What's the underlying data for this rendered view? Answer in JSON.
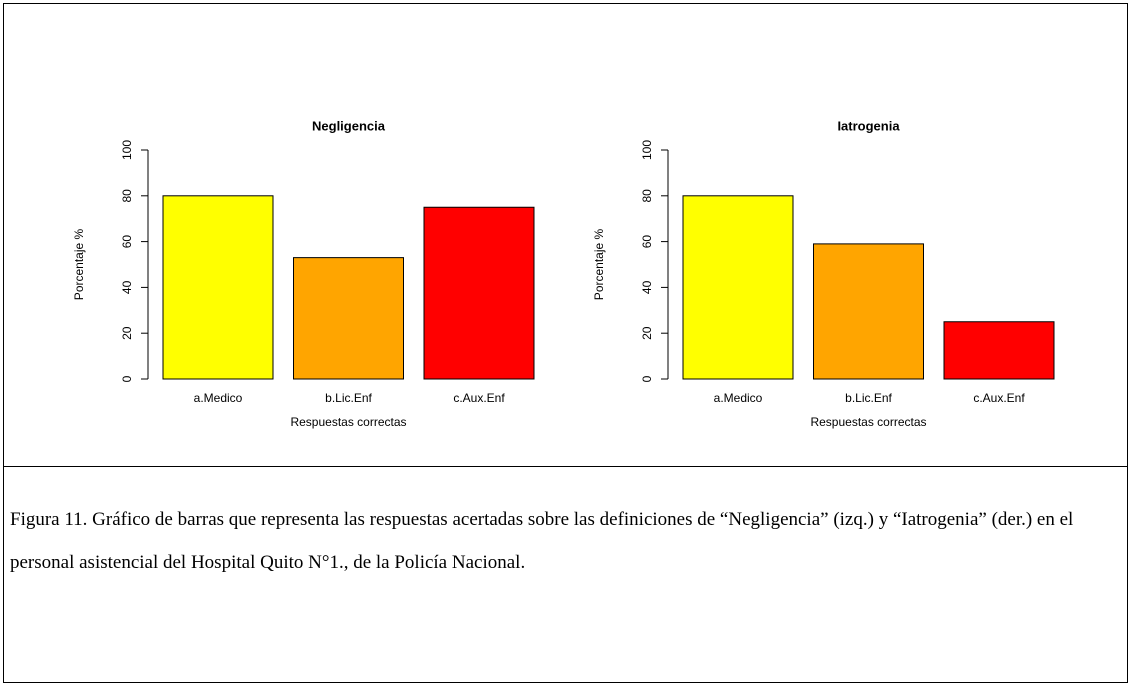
{
  "chart_data": [
    {
      "type": "bar",
      "title": "Negligencia",
      "xlabel": "Respuestas correctas",
      "ylabel": "Porcentaje %",
      "categories": [
        "a.Medico",
        "b.Lic.Enf",
        "c.Aux.Enf"
      ],
      "values": [
        80,
        53,
        75
      ],
      "colors": [
        "#ffff00",
        "#ffa500",
        "#ff0000"
      ],
      "ylim": [
        0,
        100
      ],
      "yticks": [
        0,
        20,
        40,
        60,
        80,
        100
      ]
    },
    {
      "type": "bar",
      "title": "Iatrogenia",
      "xlabel": "Respuestas correctas",
      "ylabel": "Porcentaje %",
      "categories": [
        "a.Medico",
        "b.Lic.Enf",
        "c.Aux.Enf"
      ],
      "values": [
        80,
        59,
        25
      ],
      "colors": [
        "#ffff00",
        "#ffa500",
        "#ff0000"
      ],
      "ylim": [
        0,
        100
      ],
      "yticks": [
        0,
        20,
        40,
        60,
        80,
        100
      ]
    }
  ],
  "caption": "Figura 11. Gráfico de barras que representa las respuestas acertadas sobre las definiciones de “Negligencia” (izq.) y “Iatrogenia” (der.) en el personal asistencial del Hospital Quito N°1., de la Policía Nacional."
}
